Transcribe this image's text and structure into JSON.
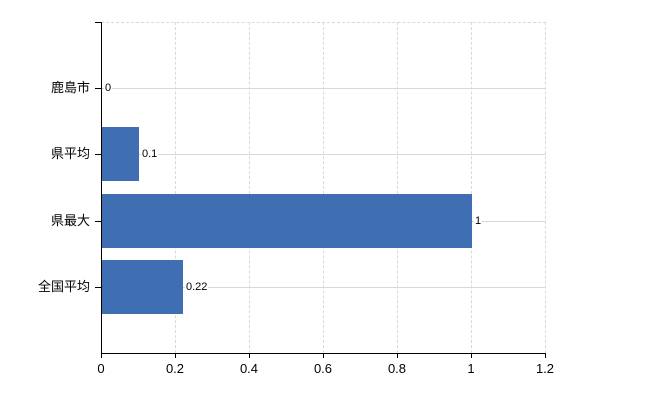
{
  "chart_data": {
    "type": "bar",
    "orientation": "horizontal",
    "categories": [
      "鹿島市",
      "県平均",
      "県最大",
      "全国平均"
    ],
    "values": [
      0,
      0.1,
      1,
      0.22
    ],
    "value_labels": [
      "0",
      "0.1",
      "1",
      "0.22"
    ],
    "xlim": [
      0,
      1.2
    ],
    "x_ticks": [
      0,
      0.2,
      0.4,
      0.6,
      0.8,
      1,
      1.2
    ],
    "x_tick_labels": [
      "0",
      "0.2",
      "0.4",
      "0.6",
      "0.8",
      "1",
      "1.2"
    ],
    "grid": true,
    "legend": false,
    "colors": {
      "bar": "#3f6eb3",
      "gridline": "#d9d9d9",
      "axis": "#000000",
      "text": "#000000",
      "background": "#ffffff"
    }
  }
}
